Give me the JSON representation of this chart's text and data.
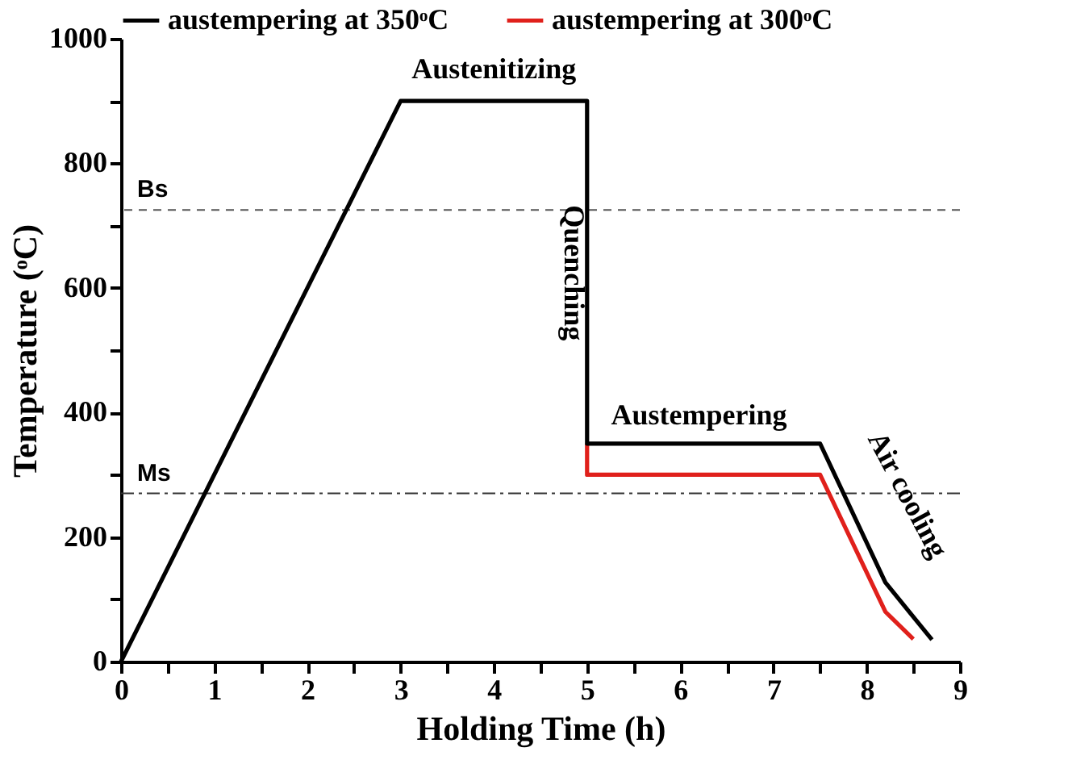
{
  "chart_data": {
    "type": "line",
    "xlabel": "Holding Time (h)",
    "ylabel": "Temperature (ᵒC)",
    "series": [
      {
        "name": "austempering at 350ᵒC",
        "color": "#000000",
        "x": [
          0,
          3,
          5,
          5,
          7.5,
          8.2,
          8.7
        ],
        "values": [
          0,
          900,
          900,
          350,
          350,
          127,
          35
        ]
      },
      {
        "name": "austempering at 300ᵒC",
        "color": "#e0201b",
        "x": [
          5,
          5,
          7.5,
          8.2,
          8.5
        ],
        "values": [
          350,
          300,
          300,
          80,
          36
        ]
      }
    ],
    "xlim": [
      0,
      9
    ],
    "ylim": [
      0,
      1000
    ],
    "xticks": [
      0,
      {
        "value": 0.5,
        "label": null
      },
      1,
      {
        "value": 1.5,
        "label": null
      },
      2,
      {
        "value": 2.5,
        "label": null
      },
      3,
      {
        "value": 3.5,
        "label": null
      },
      4,
      {
        "value": 4.5,
        "label": null
      },
      5,
      {
        "value": 5.5,
        "label": null
      },
      6,
      {
        "value": 6.5,
        "label": null
      },
      7,
      {
        "value": 7.5,
        "label": null
      },
      8,
      {
        "value": 8.5,
        "label": null
      },
      9
    ],
    "yticks": [
      0,
      {
        "value": 100,
        "label": null
      },
      200,
      {
        "value": 300,
        "label": null
      },
      400,
      {
        "value": 500,
        "label": null
      },
      600,
      {
        "value": 700,
        "label": null
      },
      800,
      {
        "value": 900,
        "label": null
      },
      1000
    ],
    "ref_lines": [
      {
        "axis": "y",
        "value": 725,
        "label": "Bs",
        "line_style": "dashed",
        "color": "#555555"
      },
      {
        "axis": "y",
        "value": 270,
        "label": "Ms",
        "line_style": "dashdot",
        "color": "#333333"
      }
    ],
    "annotations": [
      {
        "text": "Austenitizing",
        "x": 4,
        "y": 900
      },
      {
        "text": "Quenching",
        "x": 5,
        "y": 650
      },
      {
        "text": "Austempering",
        "x": 6.2,
        "y": 350
      },
      "Air cooling"
    ],
    "grid": false,
    "legend": "top",
    "marker": "none",
    "line_style": "solid"
  }
}
